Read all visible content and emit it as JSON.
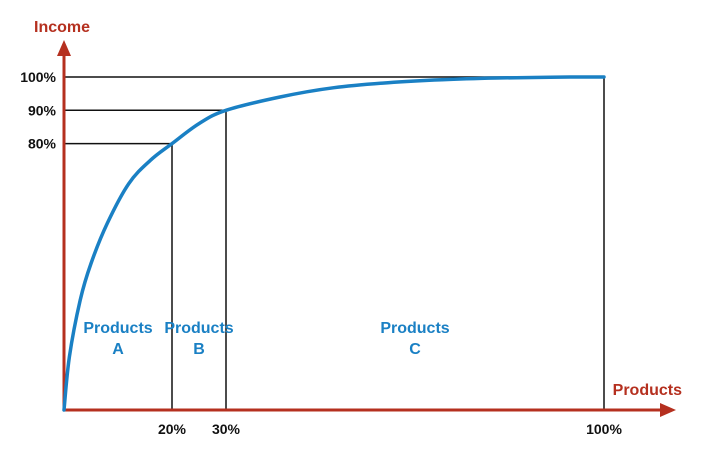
{
  "chart_data": {
    "type": "line",
    "ylabel": "Income",
    "xlabel": "Products",
    "xlim": [
      0,
      100
    ],
    "ylim": [
      0,
      100
    ],
    "series": [
      {
        "x": [
          0,
          1,
          3,
          5,
          8,
          12,
          16,
          20,
          25,
          30,
          40,
          50,
          60,
          70,
          80,
          90,
          100
        ],
        "y": [
          0,
          16,
          33,
          44,
          56,
          68,
          75,
          80,
          86,
          90,
          94,
          96.8,
          98.3,
          99.2,
          99.7,
          99.95,
          100
        ]
      }
    ],
    "x_ticks": [
      {
        "value": 20,
        "label": "20%"
      },
      {
        "value": 30,
        "label": "30%"
      },
      {
        "value": 100,
        "label": "100%"
      }
    ],
    "y_ticks": [
      {
        "value": 80,
        "label": "80%"
      },
      {
        "value": 90,
        "label": "90%"
      },
      {
        "value": 100,
        "label": "100%"
      }
    ],
    "reference_points": [
      {
        "x": 20,
        "y": 80
      },
      {
        "x": 30,
        "y": 90
      },
      {
        "x": 100,
        "y": 100
      }
    ],
    "regions": [
      {
        "name": "Products A",
        "lines": [
          "Products",
          "A"
        ],
        "x_from": 0,
        "x_to": 20
      },
      {
        "name": "Products B",
        "lines": [
          "Products",
          "B"
        ],
        "x_from": 20,
        "x_to": 30
      },
      {
        "name": "Products C",
        "lines": [
          "Products",
          "C"
        ],
        "x_from": 30,
        "x_to": 100
      }
    ],
    "colors": {
      "axis": "#b5301f",
      "curve": "#1a80c4",
      "region_text": "#1a80c4",
      "grid": "#111111"
    }
  }
}
